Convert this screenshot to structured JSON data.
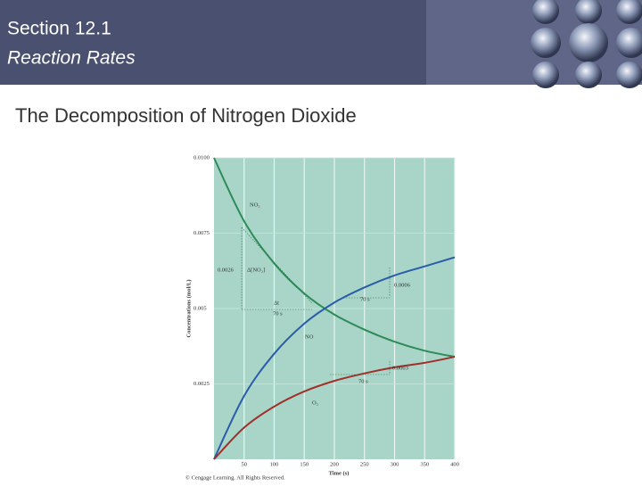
{
  "header": {
    "section": "Section 12.1",
    "topic": "Reaction Rates",
    "heading": "The Decomposition of Nitrogen Dioxide"
  },
  "chart_data": {
    "type": "line",
    "x_label": "Time (s)",
    "y_label": "Concentrations (mol/L)",
    "x": [
      0,
      50,
      100,
      150,
      200,
      250,
      300,
      350,
      400
    ],
    "series": [
      {
        "name": "NO₂",
        "color": "#2e8b57",
        "values": [
          0.01,
          0.0079,
          0.0065,
          0.0055,
          0.0048,
          0.0043,
          0.0039,
          0.0036,
          0.0034
        ]
      },
      {
        "name": "NO",
        "color": "#2a5caa",
        "values": [
          0,
          0.0021,
          0.0035,
          0.0045,
          0.0052,
          0.0057,
          0.0061,
          0.0064,
          0.0067
        ]
      },
      {
        "name": "O₂",
        "color": "#a0302a",
        "values": [
          0,
          0.00105,
          0.00175,
          0.00225,
          0.0026,
          0.00285,
          0.00305,
          0.0032,
          0.0034
        ]
      }
    ],
    "xlim": [
      0,
      400
    ],
    "xticks": [
      50,
      100,
      150,
      200,
      250,
      300,
      350,
      400
    ],
    "ylim": [
      0,
      0.01
    ],
    "yticks": [
      0.0025,
      0.005,
      0.0075,
      {
        "value": 0.01,
        "label": "0.0100"
      }
    ],
    "grid": true,
    "background": "#a8d5c8",
    "annotations": [
      "NO₂",
      "0.0026",
      "Δ[NO₂]",
      "Δt",
      "70 s",
      "NO",
      "0.0006",
      "70 s",
      "0.0003",
      "70 s",
      "O₂"
    ],
    "credit": "© Cengage Learning. All Rights Reserved."
  }
}
